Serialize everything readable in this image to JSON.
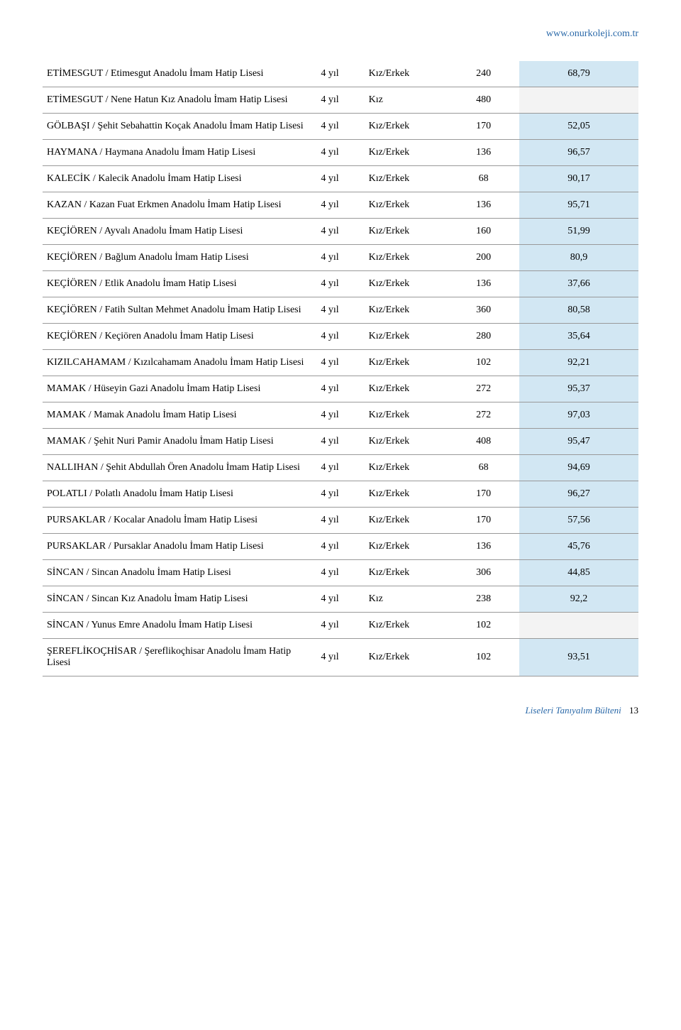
{
  "header": {
    "url": "www.onurkoleji.com.tr"
  },
  "table": {
    "score_bg_blue": "#d2e7f3",
    "score_bg_gray": "#f3f3f3",
    "rows": [
      {
        "name": "ETİMESGUT / Etimesgut Anadolu İmam Hatip Lisesi",
        "duration": "4 yıl",
        "gender": "Kız/Erkek",
        "num": "240",
        "score": "68,79",
        "shade": "blue"
      },
      {
        "name": "ETİMESGUT / Nene Hatun Kız Anadolu İmam Hatip Lisesi",
        "duration": "4 yıl",
        "gender": "Kız",
        "num": "480",
        "score": "",
        "shade": "gray"
      },
      {
        "name": "GÖLBAŞI / Şehit Sebahattin Koçak Anadolu İmam Hatip Lisesi",
        "duration": "4 yıl",
        "gender": "Kız/Erkek",
        "num": "170",
        "score": "52,05",
        "shade": "blue"
      },
      {
        "name": "HAYMANA / Haymana Anadolu İmam Hatip Lisesi",
        "duration": "4 yıl",
        "gender": "Kız/Erkek",
        "num": "136",
        "score": "96,57",
        "shade": "blue"
      },
      {
        "name": "KALECİK / Kalecik Anadolu İmam Hatip Lisesi",
        "duration": "4 yıl",
        "gender": "Kız/Erkek",
        "num": "68",
        "score": "90,17",
        "shade": "blue"
      },
      {
        "name": "KAZAN / Kazan Fuat Erkmen Anadolu İmam Hatip Lisesi",
        "duration": "4 yıl",
        "gender": "Kız/Erkek",
        "num": "136",
        "score": "95,71",
        "shade": "blue"
      },
      {
        "name": "KEÇİÖREN / Ayvalı Anadolu İmam Hatip Lisesi",
        "duration": "4 yıl",
        "gender": "Kız/Erkek",
        "num": "160",
        "score": "51,99",
        "shade": "blue"
      },
      {
        "name": "KEÇİÖREN / Bağlum Anadolu İmam Hatip Lisesi",
        "duration": "4 yıl",
        "gender": "Kız/Erkek",
        "num": "200",
        "score": "80,9",
        "shade": "blue"
      },
      {
        "name": "KEÇİÖREN / Etlik Anadolu İmam Hatip Lisesi",
        "duration": "4 yıl",
        "gender": "Kız/Erkek",
        "num": "136",
        "score": "37,66",
        "shade": "blue"
      },
      {
        "name": "KEÇİÖREN / Fatih Sultan Mehmet Anadolu İmam Hatip Lisesi",
        "duration": "4 yıl",
        "gender": "Kız/Erkek",
        "num": "360",
        "score": "80,58",
        "shade": "blue"
      },
      {
        "name": "KEÇİÖREN / Keçiören Anadolu İmam Hatip Lisesi",
        "duration": "4 yıl",
        "gender": "Kız/Erkek",
        "num": "280",
        "score": "35,64",
        "shade": "blue"
      },
      {
        "name": "KIZILCAHAMAM / Kızılcahamam Anadolu İmam Hatip Lisesi",
        "duration": "4 yıl",
        "gender": "Kız/Erkek",
        "num": "102",
        "score": "92,21",
        "shade": "blue"
      },
      {
        "name": "MAMAK / Hüseyin Gazi Anadolu İmam Hatip Lisesi",
        "duration": "4 yıl",
        "gender": "Kız/Erkek",
        "num": "272",
        "score": "95,37",
        "shade": "blue"
      },
      {
        "name": "MAMAK / Mamak Anadolu İmam Hatip Lisesi",
        "duration": "4 yıl",
        "gender": "Kız/Erkek",
        "num": "272",
        "score": "97,03",
        "shade": "blue"
      },
      {
        "name": "MAMAK / Şehit Nuri Pamir Anadolu İmam Hatip Lisesi",
        "duration": "4 yıl",
        "gender": "Kız/Erkek",
        "num": "408",
        "score": "95,47",
        "shade": "blue"
      },
      {
        "name": "NALLIHAN / Şehit Abdullah Ören Anadolu İmam Hatip Lisesi",
        "duration": "4 yıl",
        "gender": "Kız/Erkek",
        "num": "68",
        "score": "94,69",
        "shade": "blue"
      },
      {
        "name": "POLATLI / Polatlı Anadolu İmam Hatip Lisesi",
        "duration": "4 yıl",
        "gender": "Kız/Erkek",
        "num": "170",
        "score": "96,27",
        "shade": "blue"
      },
      {
        "name": "PURSAKLAR / Kocalar Anadolu İmam Hatip Lisesi",
        "duration": "4 yıl",
        "gender": "Kız/Erkek",
        "num": "170",
        "score": "57,56",
        "shade": "blue"
      },
      {
        "name": "PURSAKLAR / Pursaklar Anadolu İmam Hatip Lisesi",
        "duration": "4 yıl",
        "gender": "Kız/Erkek",
        "num": "136",
        "score": "45,76",
        "shade": "blue"
      },
      {
        "name": "SİNCAN / Sincan Anadolu İmam Hatip Lisesi",
        "duration": "4 yıl",
        "gender": "Kız/Erkek",
        "num": "306",
        "score": "44,85",
        "shade": "blue"
      },
      {
        "name": "SİNCAN / Sincan Kız Anadolu İmam Hatip Lisesi",
        "duration": "4 yıl",
        "gender": "Kız",
        "num": "238",
        "score": "92,2",
        "shade": "blue"
      },
      {
        "name": "SİNCAN / Yunus Emre Anadolu İmam Hatip Lisesi",
        "duration": "4 yıl",
        "gender": "Kız/Erkek",
        "num": "102",
        "score": "",
        "shade": "gray"
      },
      {
        "name": "ŞEREFLİKOÇHİSAR / Şereflikoçhisar Anadolu İmam Hatip Lisesi",
        "duration": "4 yıl",
        "gender": "Kız/Erkek",
        "num": "102",
        "score": "93,51",
        "shade": "blue"
      }
    ]
  },
  "footer": {
    "title": "Liseleri Tanıyalım Bülteni",
    "page": "13"
  }
}
